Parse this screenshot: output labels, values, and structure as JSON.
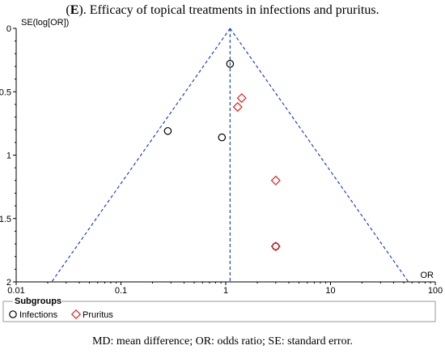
{
  "title_letter": "E",
  "title_rest": "). Efficacy of topical treatments in infections and pruritus.",
  "caption": "MD: mean difference; OR: odds ratio; SE: standard error.",
  "colors": {
    "funnel": "#2040c8",
    "infections": "#000000",
    "pruritus": "#e02020",
    "axis": "#000000"
  },
  "chart_data": {
    "type": "scatter",
    "title": "Efficacy of topical treatments in infections and pruritus.",
    "xlabel": "OR",
    "ylabel": "SE(log[OR])",
    "x_scale": "log",
    "xlim": [
      0.01,
      100
    ],
    "ylim": [
      0,
      2
    ],
    "y_reversed": true,
    "x_ticks": [
      0.01,
      0.1,
      1,
      10,
      100
    ],
    "x_tick_labels": [
      "0.01",
      "0.1",
      "1",
      "10",
      "100"
    ],
    "y_ticks": [
      0,
      0.5,
      1,
      1.5,
      2
    ],
    "y_tick_labels": [
      "0",
      "0.5",
      "1",
      "1.5",
      "2"
    ],
    "pooled_or": 1.1,
    "legend_title": "Subgroups",
    "legend_position": "bottom-left",
    "series": [
      {
        "name": "Infections",
        "marker": "circle",
        "points": [
          {
            "x": 1.1,
            "y": 0.28
          },
          {
            "x": 0.28,
            "y": 0.81
          },
          {
            "x": 0.92,
            "y": 0.86
          },
          {
            "x": 3.0,
            "y": 1.72
          }
        ]
      },
      {
        "name": "Pruritus",
        "marker": "diamond",
        "points": [
          {
            "x": 1.42,
            "y": 0.55
          },
          {
            "x": 1.3,
            "y": 0.62
          },
          {
            "x": 3.0,
            "y": 1.2
          },
          {
            "x": 3.0,
            "y": 1.72
          }
        ]
      }
    ]
  }
}
